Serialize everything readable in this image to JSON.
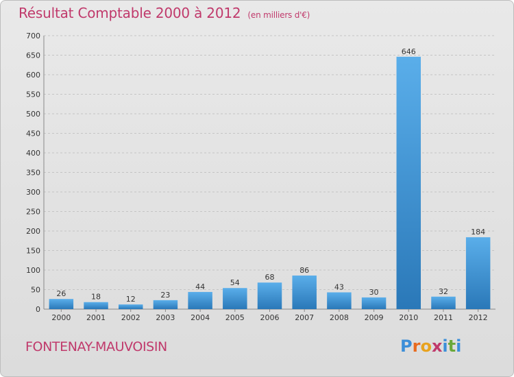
{
  "title": "Résultat Comptable 2000 à 2012",
  "unit": "(en milliers d'€)",
  "place": "FONTENAY-MAUVOISIN",
  "logo": {
    "letters": [
      "P",
      "r",
      "o",
      "x",
      "i",
      "t",
      "i"
    ],
    "colors": [
      "#3b8ed8",
      "#e86a1e",
      "#e8a21e",
      "#c0396b",
      "#3b8ed8",
      "#6aa83a",
      "#3b8ed8"
    ]
  },
  "colors": {
    "bar_top": "#5aaeea",
    "bar_bottom": "#2a78b8",
    "title": "#c0396b"
  },
  "chart_data": {
    "type": "bar",
    "title": "Résultat Comptable 2000 à 2012",
    "categories": [
      "2000",
      "2001",
      "2002",
      "2003",
      "2004",
      "2005",
      "2006",
      "2007",
      "2008",
      "2009",
      "2010",
      "2011",
      "2012"
    ],
    "values": [
      26,
      18,
      12,
      23,
      44,
      54,
      68,
      86,
      43,
      30,
      646,
      32,
      184
    ],
    "data_labels": [
      "26",
      "18",
      "12",
      "23",
      "44",
      "54",
      "68",
      "86",
      "43",
      "30",
      "646",
      "32",
      "184"
    ],
    "yticks": [
      "0",
      "50",
      "100",
      "150",
      "200",
      "250",
      "300",
      "350",
      "400",
      "450",
      "500",
      "550",
      "600",
      "650",
      "700"
    ],
    "ylim": [
      0,
      700
    ],
    "grid": true
  }
}
